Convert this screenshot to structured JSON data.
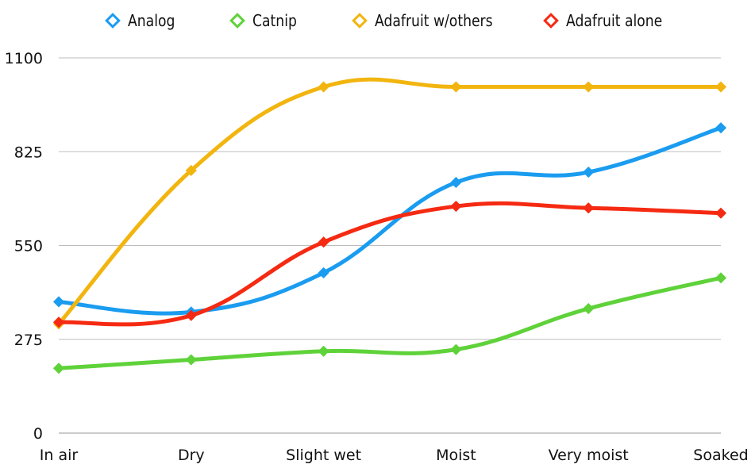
{
  "chart_data": {
    "type": "line",
    "categories": [
      "In air",
      "Dry",
      "Slight wet",
      "Moist",
      "Very moist",
      "Soaked"
    ],
    "ylim": [
      0,
      1100
    ],
    "yticks": [
      0,
      275,
      550,
      825,
      1100
    ],
    "grid": true,
    "legend_position": "top",
    "series": [
      {
        "name": "Analog",
        "color": "#1a9cf0",
        "values": [
          385,
          355,
          470,
          735,
          765,
          895
        ]
      },
      {
        "name": "Catnip",
        "color": "#5fd23a",
        "values": [
          190,
          215,
          240,
          245,
          365,
          455
        ]
      },
      {
        "name": "Adafruit w/others",
        "color": "#f2b50f",
        "values": [
          320,
          770,
          1015,
          1015,
          1015,
          1015
        ]
      },
      {
        "name": "Adafruit alone",
        "color": "#f52a12",
        "values": [
          325,
          345,
          560,
          665,
          660,
          645
        ]
      }
    ]
  }
}
